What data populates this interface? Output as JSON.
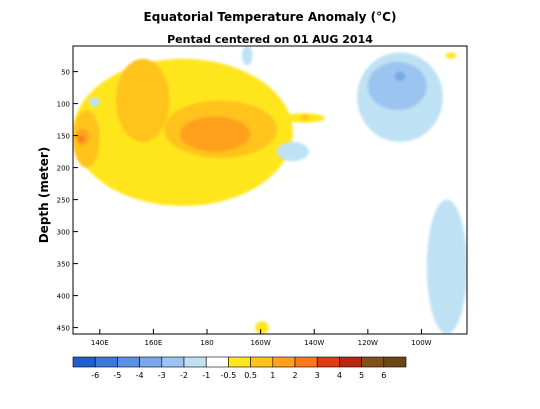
{
  "chart_data": {
    "type": "heatmap",
    "title": "Equatorial Temperature Anomaly (°C)",
    "subtitle": "Pentad centered on 01 AUG 2014",
    "xlabel": "",
    "ylabel": "Depth (meter)",
    "x_ticks": [
      "140E",
      "160E",
      "180",
      "160W",
      "140W",
      "120W",
      "100W"
    ],
    "x_tick_lon": [
      140,
      160,
      180,
      200,
      220,
      240,
      260
    ],
    "xlim_lon": [
      130,
      277
    ],
    "y_ticks": [
      50,
      100,
      150,
      200,
      250,
      300,
      350,
      400,
      450
    ],
    "ylim": [
      460,
      10
    ],
    "colorbar": {
      "labels": [
        "-6",
        "-5",
        "-4",
        "-3",
        "-2",
        "-1",
        "-0.5",
        "0.5",
        "1",
        "2",
        "3",
        "4",
        "5",
        "6"
      ],
      "colors": [
        "#1f5fd0",
        "#3a78dc",
        "#5a91e3",
        "#79a9ea",
        "#9cc4f0",
        "#bfe1f4",
        "#ffffff",
        "#ffe61e",
        "#ffc31e",
        "#ffa01e",
        "#ff781e",
        "#e03c14",
        "#b42814",
        "#80501e",
        "#6b4714"
      ]
    },
    "anomaly_regions": [
      {
        "level": "0.5",
        "lon": [
          130,
          212
        ],
        "depth": [
          30,
          260
        ],
        "note": "broad warm layer west of dateline"
      },
      {
        "level": "1",
        "lon": [
          146,
          166
        ],
        "depth": [
          30,
          160
        ]
      },
      {
        "level": "1",
        "lon": [
          164,
          206
        ],
        "depth": [
          95,
          185
        ]
      },
      {
        "level": "1",
        "lon": [
          130,
          140
        ],
        "depth": [
          110,
          200
        ]
      },
      {
        "level": "2",
        "lon": [
          170,
          196
        ],
        "depth": [
          120,
          175
        ]
      },
      {
        "level": "2",
        "lon": [
          131,
          136
        ],
        "depth": [
          140,
          165
        ]
      },
      {
        "level": "3",
        "lon": [
          132,
          134
        ],
        "depth": [
          150,
          160
        ]
      },
      {
        "level": "0.5",
        "lon": [
          208,
          224
        ],
        "depth": [
          115,
          130
        ]
      },
      {
        "level": "1",
        "lon": [
          215,
          218
        ],
        "depth": [
          118,
          126
        ]
      },
      {
        "level": "0.5",
        "lon": [
          198,
          203
        ],
        "depth": [
          440,
          460
        ]
      },
      {
        "level": "0.5",
        "lon": [
          269,
          273
        ],
        "depth": [
          20,
          30
        ]
      },
      {
        "level": "-0.5",
        "lon": [
          236,
          268
        ],
        "depth": [
          20,
          160
        ]
      },
      {
        "level": "-1",
        "lon": [
          240,
          262
        ],
        "depth": [
          35,
          110
        ]
      },
      {
        "level": "-2",
        "lon": [
          246,
          258
        ],
        "depth": [
          40,
          90
        ]
      },
      {
        "level": "-3",
        "lon": [
          250,
          254
        ],
        "depth": [
          50,
          65
        ]
      },
      {
        "level": "-0.5",
        "lon": [
          262,
          277
        ],
        "depth": [
          250,
          460
        ]
      },
      {
        "level": "-0.5",
        "lon": [
          206,
          218
        ],
        "depth": [
          160,
          190
        ]
      },
      {
        "level": "-0.5",
        "lon": [
          193,
          197
        ],
        "depth": [
          10,
          40
        ]
      },
      {
        "level": "-0.5",
        "lon": [
          136,
          140
        ],
        "depth": [
          90,
          105
        ]
      }
    ]
  }
}
